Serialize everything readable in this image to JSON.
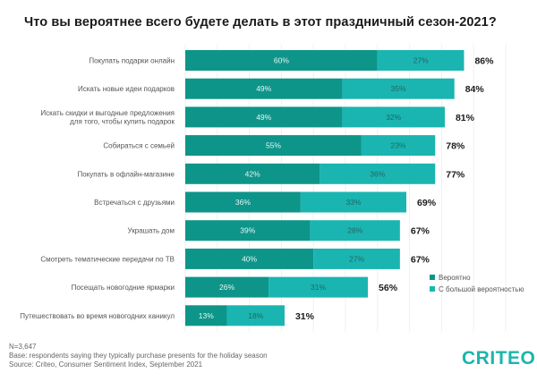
{
  "footnote": {
    "n": "N=3,647",
    "base": "Base: respondents saying they typically purchase presents for the holiday season",
    "source": "Source: Criteo, Consumer Sentiment Index, September 2021"
  },
  "logo": "CRITEO",
  "colors": {
    "likely": "#0e958a",
    "very_likely": "#1ab5b1",
    "seg_text_dark_bg": "#e6f5f3",
    "seg_text_light_bg": "#226663",
    "grid": "#eef1f1"
  },
  "chart_data": {
    "type": "bar",
    "orientation": "horizontal",
    "stacked": true,
    "title": "Что вы вероятнее всего будете делать в этот праздничный сезон-2021?",
    "xlabel": "",
    "ylabel": "",
    "xlim": [
      0,
      100
    ],
    "grid": true,
    "legend_position": "right",
    "categories": [
      "Покупать подарки онлайн",
      "Искать новые идеи подарков",
      "Искать скидки и выгодные предложения\nдля того, чтобы купить подарок",
      "Собираться с семьей",
      "Покупать в офлайн-магазине",
      "Встречаться с друзьями",
      "Украшать дом",
      "Смотреть тематические передачи по ТВ",
      "Посещать новогодние ярмарки",
      "Путешествовать во время новогодних каникул"
    ],
    "series": [
      {
        "name": "Вероятно",
        "values": [
          60,
          49,
          49,
          55,
          42,
          36,
          39,
          40,
          26,
          13
        ]
      },
      {
        "name": "С большой вероятностью",
        "values": [
          27,
          35,
          32,
          23,
          36,
          33,
          28,
          27,
          31,
          18
        ]
      }
    ],
    "totals": [
      86,
      84,
      81,
      78,
      77,
      69,
      67,
      67,
      56,
      31
    ],
    "value_suffix": "%"
  }
}
